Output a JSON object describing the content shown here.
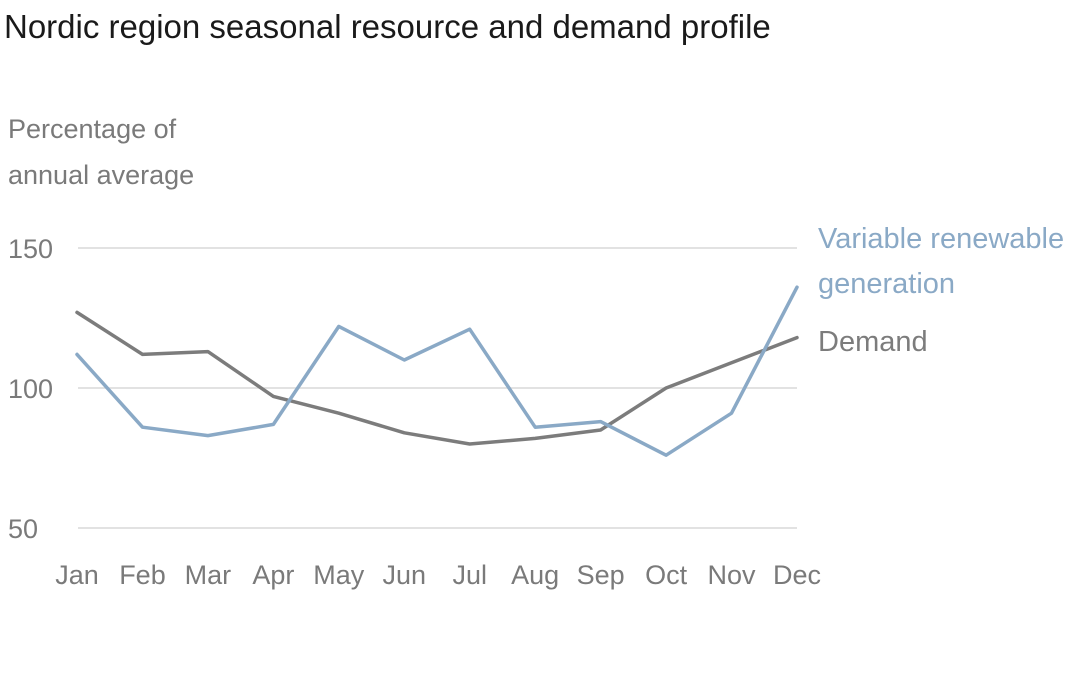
{
  "chart_data": {
    "type": "line",
    "title": "Nordic region seasonal resource and demand profile",
    "ylabel_lines": [
      "Percentage of",
      "annual average"
    ],
    "xlabel": "",
    "categories": [
      "Jan",
      "Feb",
      "Mar",
      "Apr",
      "May",
      "Jun",
      "Jul",
      "Aug",
      "Sep",
      "Oct",
      "Nov",
      "Dec"
    ],
    "ylim": [
      50,
      150
    ],
    "yticks": [
      50,
      100,
      150
    ],
    "grid": true,
    "legend_placement": "right, labels at line ends",
    "series": [
      {
        "name": "Variable renewable generation",
        "label_lines": [
          "Variable renewable",
          "generation"
        ],
        "color": "#8aa9c6",
        "values": [
          112,
          86,
          83,
          87,
          122,
          110,
          121,
          86,
          88,
          76,
          91,
          136
        ]
      },
      {
        "name": "Demand",
        "label_lines": [
          "Demand"
        ],
        "color": "#7c7c7c",
        "values": [
          127,
          112,
          113,
          97,
          91,
          84,
          80,
          82,
          85,
          100,
          109,
          118
        ]
      }
    ]
  }
}
